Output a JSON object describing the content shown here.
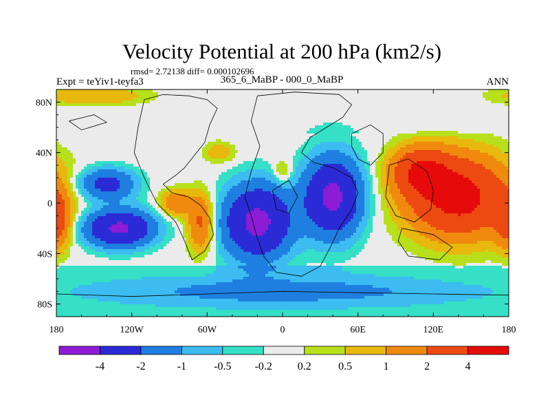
{
  "chart_data": {
    "type": "heatmap",
    "title": "Velocity Potential at 200 hPa (km2/s)",
    "stats": "rmsd= 2.72138 diff= 0.000102696",
    "left_label": "Expt = teYiv1-teyfa3",
    "center_label": "365_6_MaBP - 000_0_MaBP",
    "right_label": "ANN",
    "xlim": [
      -180,
      180
    ],
    "ylim": [
      -90,
      90
    ],
    "x_ticks": [
      {
        "value": -180,
        "label": "180"
      },
      {
        "value": -120,
        "label": "120W"
      },
      {
        "value": -60,
        "label": "60W"
      },
      {
        "value": 0,
        "label": "0"
      },
      {
        "value": 60,
        "label": "60E"
      },
      {
        "value": 120,
        "label": "120E"
      },
      {
        "value": 180,
        "label": "180"
      }
    ],
    "y_ticks": [
      {
        "value": 80,
        "label": "80N"
      },
      {
        "value": 40,
        "label": "40N"
      },
      {
        "value": 0,
        "label": "0"
      },
      {
        "value": -40,
        "label": "40S"
      },
      {
        "value": -80,
        "label": "80S"
      }
    ],
    "colorbar": {
      "colors": [
        "#8c1cd6",
        "#2b2bd6",
        "#1f7fe0",
        "#3cbcf0",
        "#35e0c6",
        "#ebebeb",
        "#b7e01a",
        "#e8b80e",
        "#f08a0e",
        "#ec4a10",
        "#e60a0a"
      ],
      "levels": [
        -4,
        -2,
        -1,
        -0.5,
        -0.2,
        0.2,
        0.5,
        1,
        2,
        4
      ],
      "labels": [
        "-4",
        "-2",
        "-1",
        "-0.5",
        "-0.2",
        "0.2",
        "0.5",
        "1",
        "2",
        "4"
      ]
    },
    "field_features": [
      {
        "name": "west-pacific-max",
        "lon": 140,
        "lat": 5,
        "value": 5
      },
      {
        "name": "indian-ocean-max",
        "lon": 110,
        "lat": 25,
        "value": 3.6
      },
      {
        "name": "africa-min",
        "lon": 40,
        "lat": 5,
        "value": -4.5
      },
      {
        "name": "atlantic-min",
        "lon": -20,
        "lat": -15,
        "value": -4.6
      },
      {
        "name": "east-pacific-min",
        "lon": -140,
        "lat": 15,
        "value": -2.6
      },
      {
        "name": "south-pacific-min",
        "lon": -130,
        "lat": -20,
        "value": -4.4
      },
      {
        "name": "americas-max",
        "lon": -65,
        "lat": -15,
        "value": 2.3
      },
      {
        "name": "mexico-max",
        "lon": -85,
        "lat": 0,
        "value": 1.8
      },
      {
        "name": "north-atlantic-max",
        "lon": -50,
        "lat": 40,
        "value": 0.9
      },
      {
        "name": "north-africa-max",
        "lon": 0,
        "lat": 25,
        "value": 0.9
      },
      {
        "name": "central-pacific-max",
        "lon": -180,
        "lat": -15,
        "value": 2.6
      },
      {
        "name": "arctic-max",
        "lon": -150,
        "lat": 85,
        "value": 1.1
      },
      {
        "name": "southern-band-min",
        "lon": 0,
        "lat": -70,
        "value": -1.1
      }
    ]
  }
}
